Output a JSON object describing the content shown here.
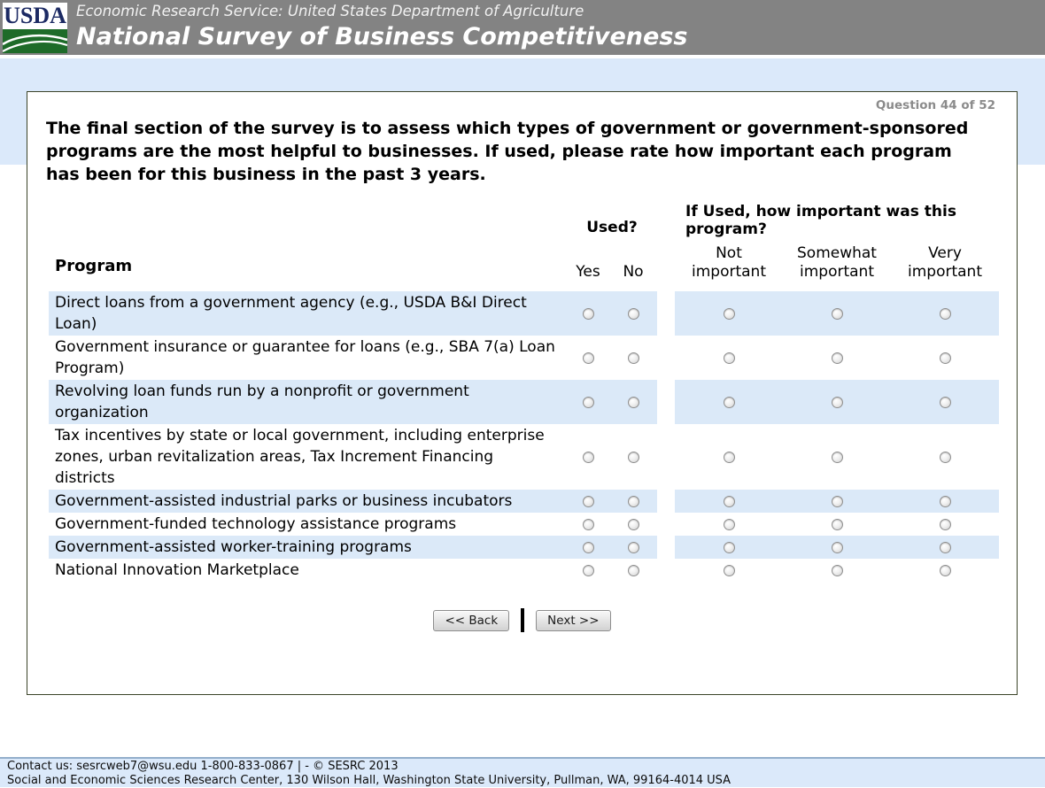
{
  "header": {
    "logo_text": "USDA",
    "agency_line": "Economic Research Service: United States Department of Agriculture",
    "survey_title": "National Survey of Business Competitiveness"
  },
  "question": {
    "counter": "Question 44 of 52",
    "text": "The final section of the survey is to assess which types of government or government-sponsored programs are the most helpful to businesses. If used, please rate how important each program has been for this business in the past 3 years."
  },
  "table": {
    "program_header": "Program",
    "used_header": "Used?",
    "importance_header": "If Used, how important was this program?",
    "used_options": [
      "Yes",
      "No"
    ],
    "importance_options": [
      "Not important",
      "Somewhat important",
      "Very important"
    ],
    "rows": [
      "Direct loans from a government agency (e.g., USDA B&I Direct Loan)",
      "Government insurance or guarantee for loans (e.g., SBA 7(a) Loan Program)",
      "Revolving loan funds run by a nonprofit or government organization",
      "Tax incentives by state or local government, including enterprise zones, urban revitalization areas, Tax Increment Financing districts",
      "Government-assisted industrial parks or business incubators",
      "Government-funded technology assistance programs",
      "Government-assisted worker-training programs",
      "National Innovation Marketplace"
    ]
  },
  "buttons": {
    "back": "<< Back",
    "next": "Next >>"
  },
  "footer": {
    "line1": "Contact us: sesrcweb7@wsu.edu 1-800-833-0867 | - © SESRC 2013",
    "line2": "Social and Economic Sciences Research Center, 130 Wilson Hall, Washington State University, Pullman, WA, 99164-4014 USA"
  },
  "colors": {
    "header_gray": "#838383",
    "band_blue": "#dbe9fa",
    "row_blue": "#dbe9f8",
    "box_border": "#3c4429",
    "footer_border": "#93aecb",
    "usda_green": "#1e6b29",
    "usda_navy": "#1c2a63"
  }
}
